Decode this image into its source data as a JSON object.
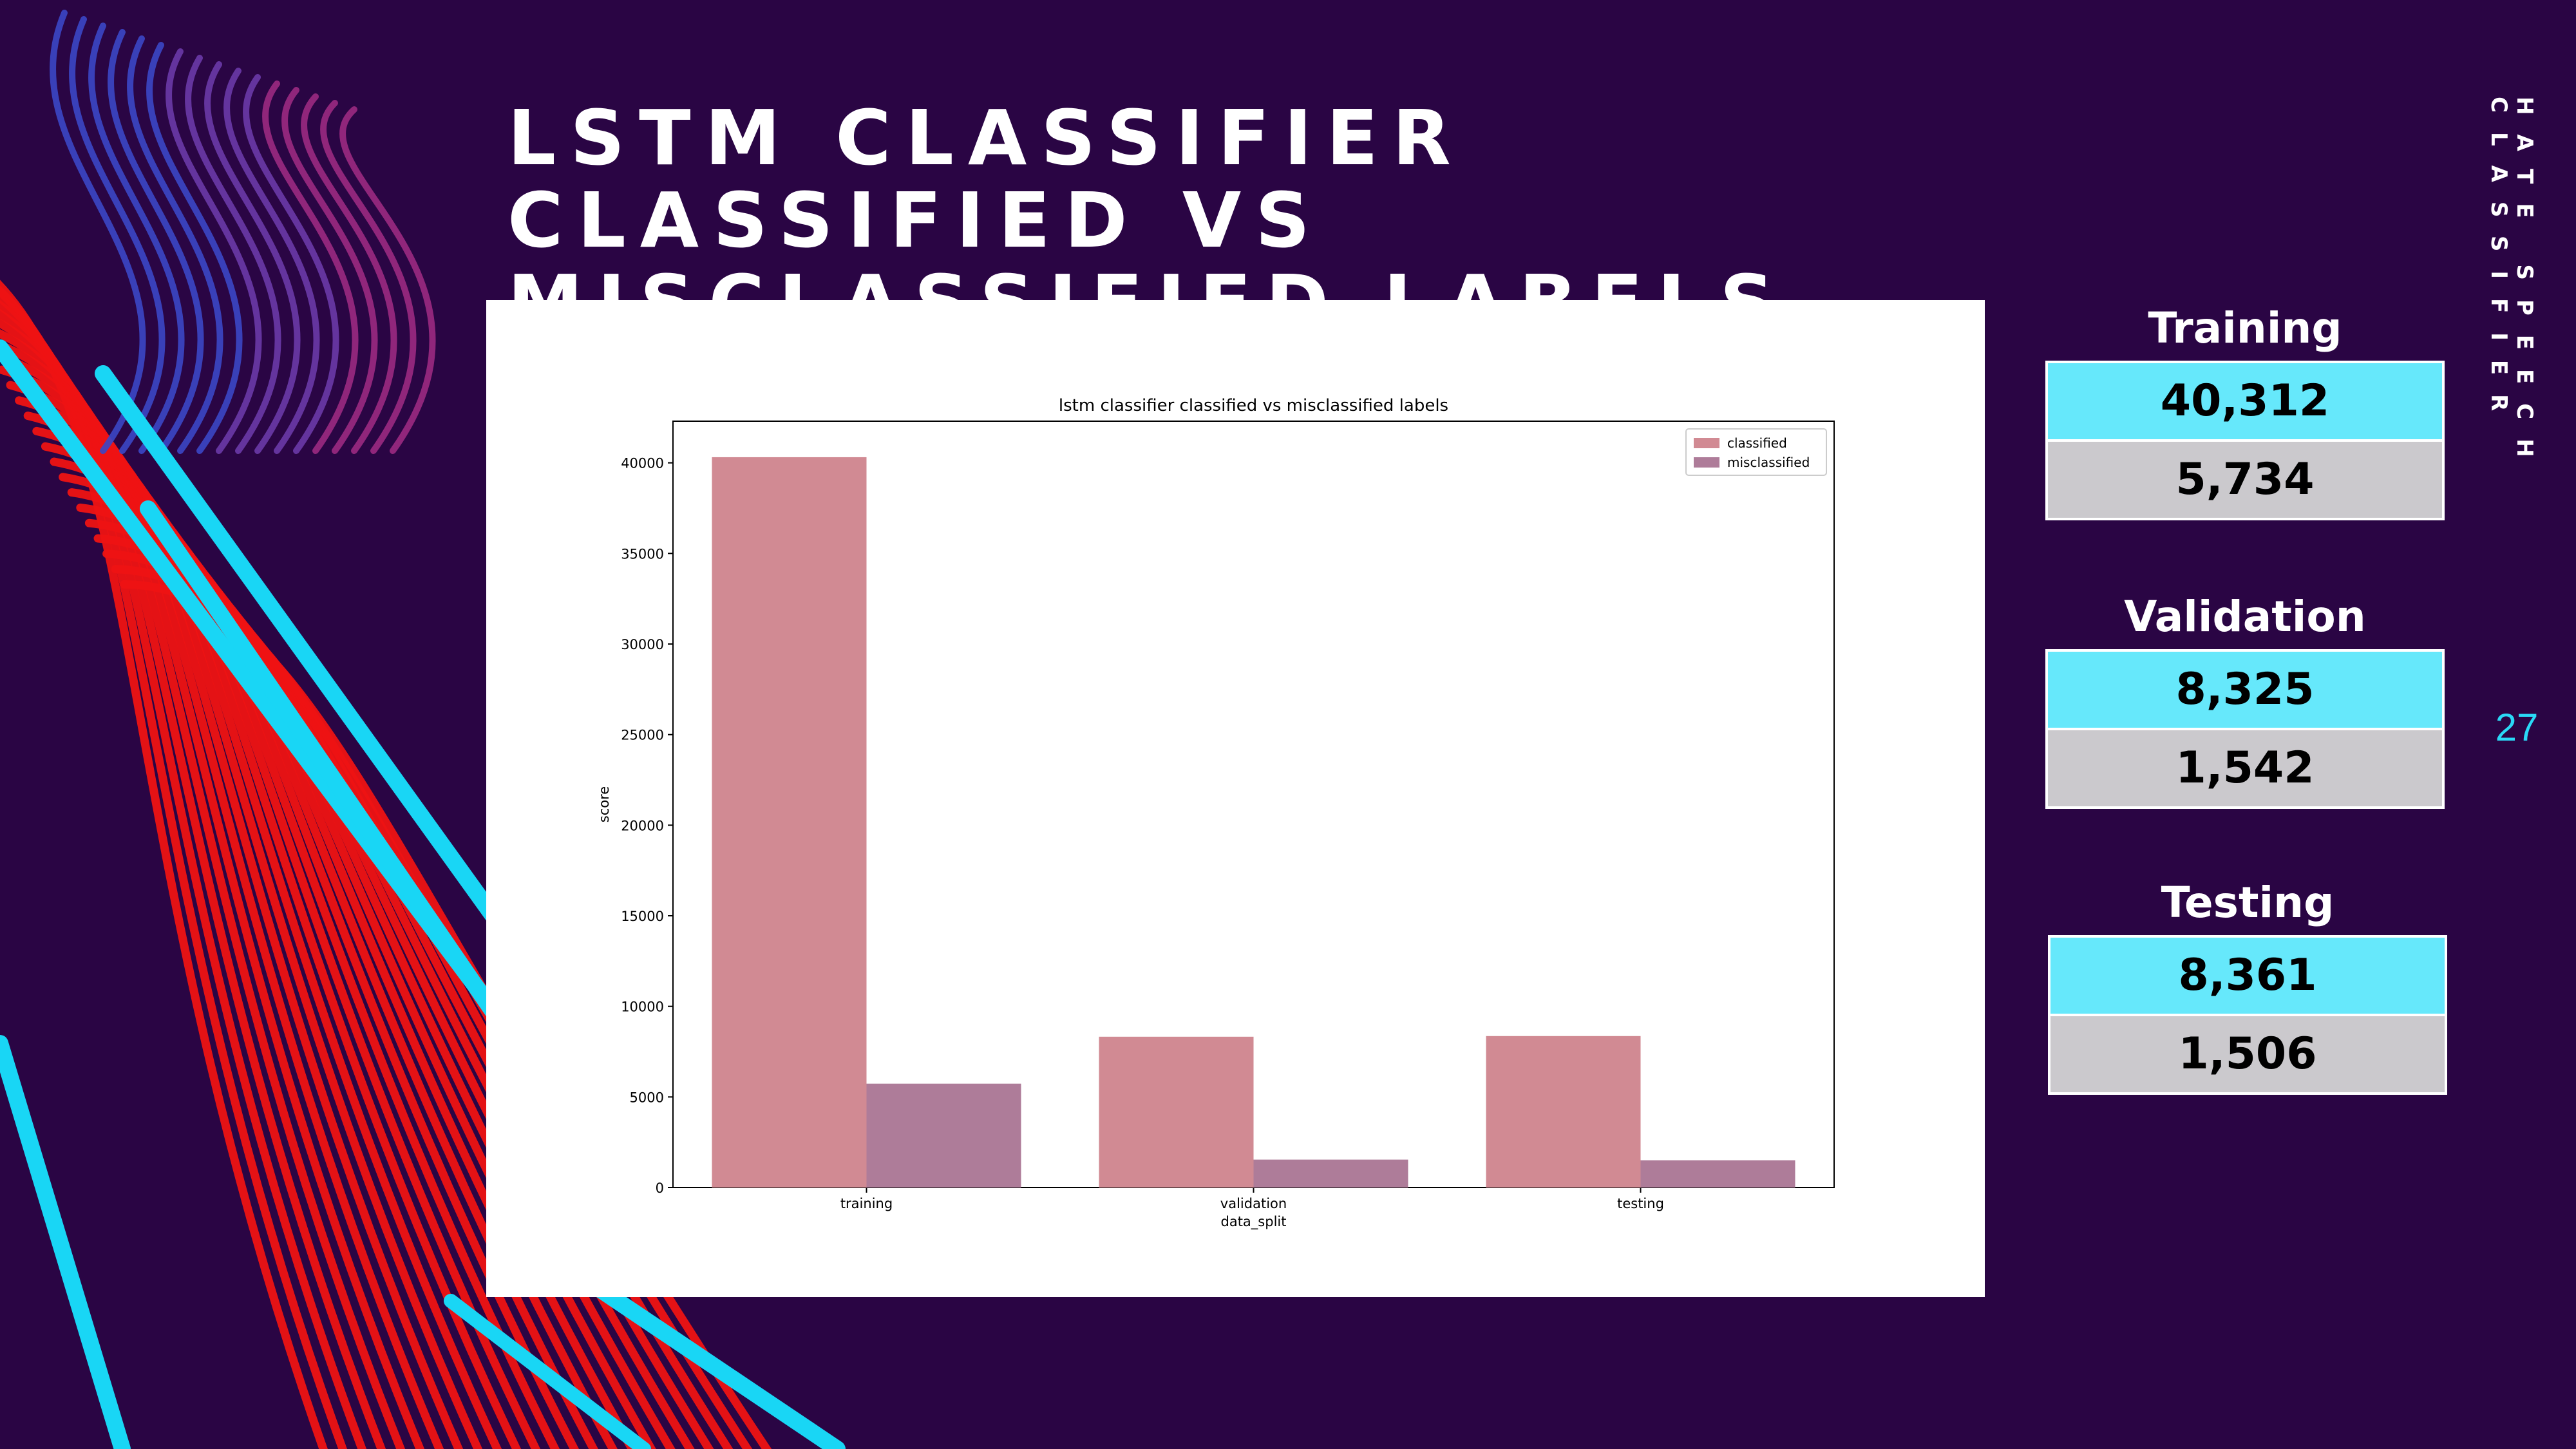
{
  "slide": {
    "title": "LSTM CLASSIFIER CLASSIFIED VS MISCLASSIFIED LABELS",
    "side_label": "HATE SPEECH CLASSIFIER",
    "page_number": "27"
  },
  "stats": [
    {
      "heading": "Training",
      "classified": "40,312",
      "misclassified": "5,734"
    },
    {
      "heading": "Validation",
      "classified": "8,325",
      "misclassified": "1,542"
    },
    {
      "heading": "Testing",
      "classified": "8,361",
      "misclassified": "1,506"
    }
  ],
  "colors": {
    "background": "#2a0544",
    "accent_cyan": "#2ad9f6",
    "stat_primary": "#66e8fb",
    "stat_secondary": "#cbc9cd",
    "bar_classified": "#d18a93",
    "bar_misclassified": "#ae7c99"
  },
  "chart_data": {
    "type": "bar",
    "title": "lstm classifier classified vs misclassified labels",
    "xlabel": "data_split",
    "ylabel": "score",
    "categories": [
      "training",
      "validation",
      "testing"
    ],
    "series": [
      {
        "name": "classified",
        "values": [
          40312,
          8325,
          8361
        ]
      },
      {
        "name": "misclassified",
        "values": [
          5734,
          1542,
          1506
        ]
      }
    ],
    "ylim": [
      0,
      42300
    ],
    "yticks": [
      0,
      5000,
      10000,
      15000,
      20000,
      25000,
      30000,
      35000,
      40000
    ],
    "legend_position": "top-right",
    "grid": false
  }
}
